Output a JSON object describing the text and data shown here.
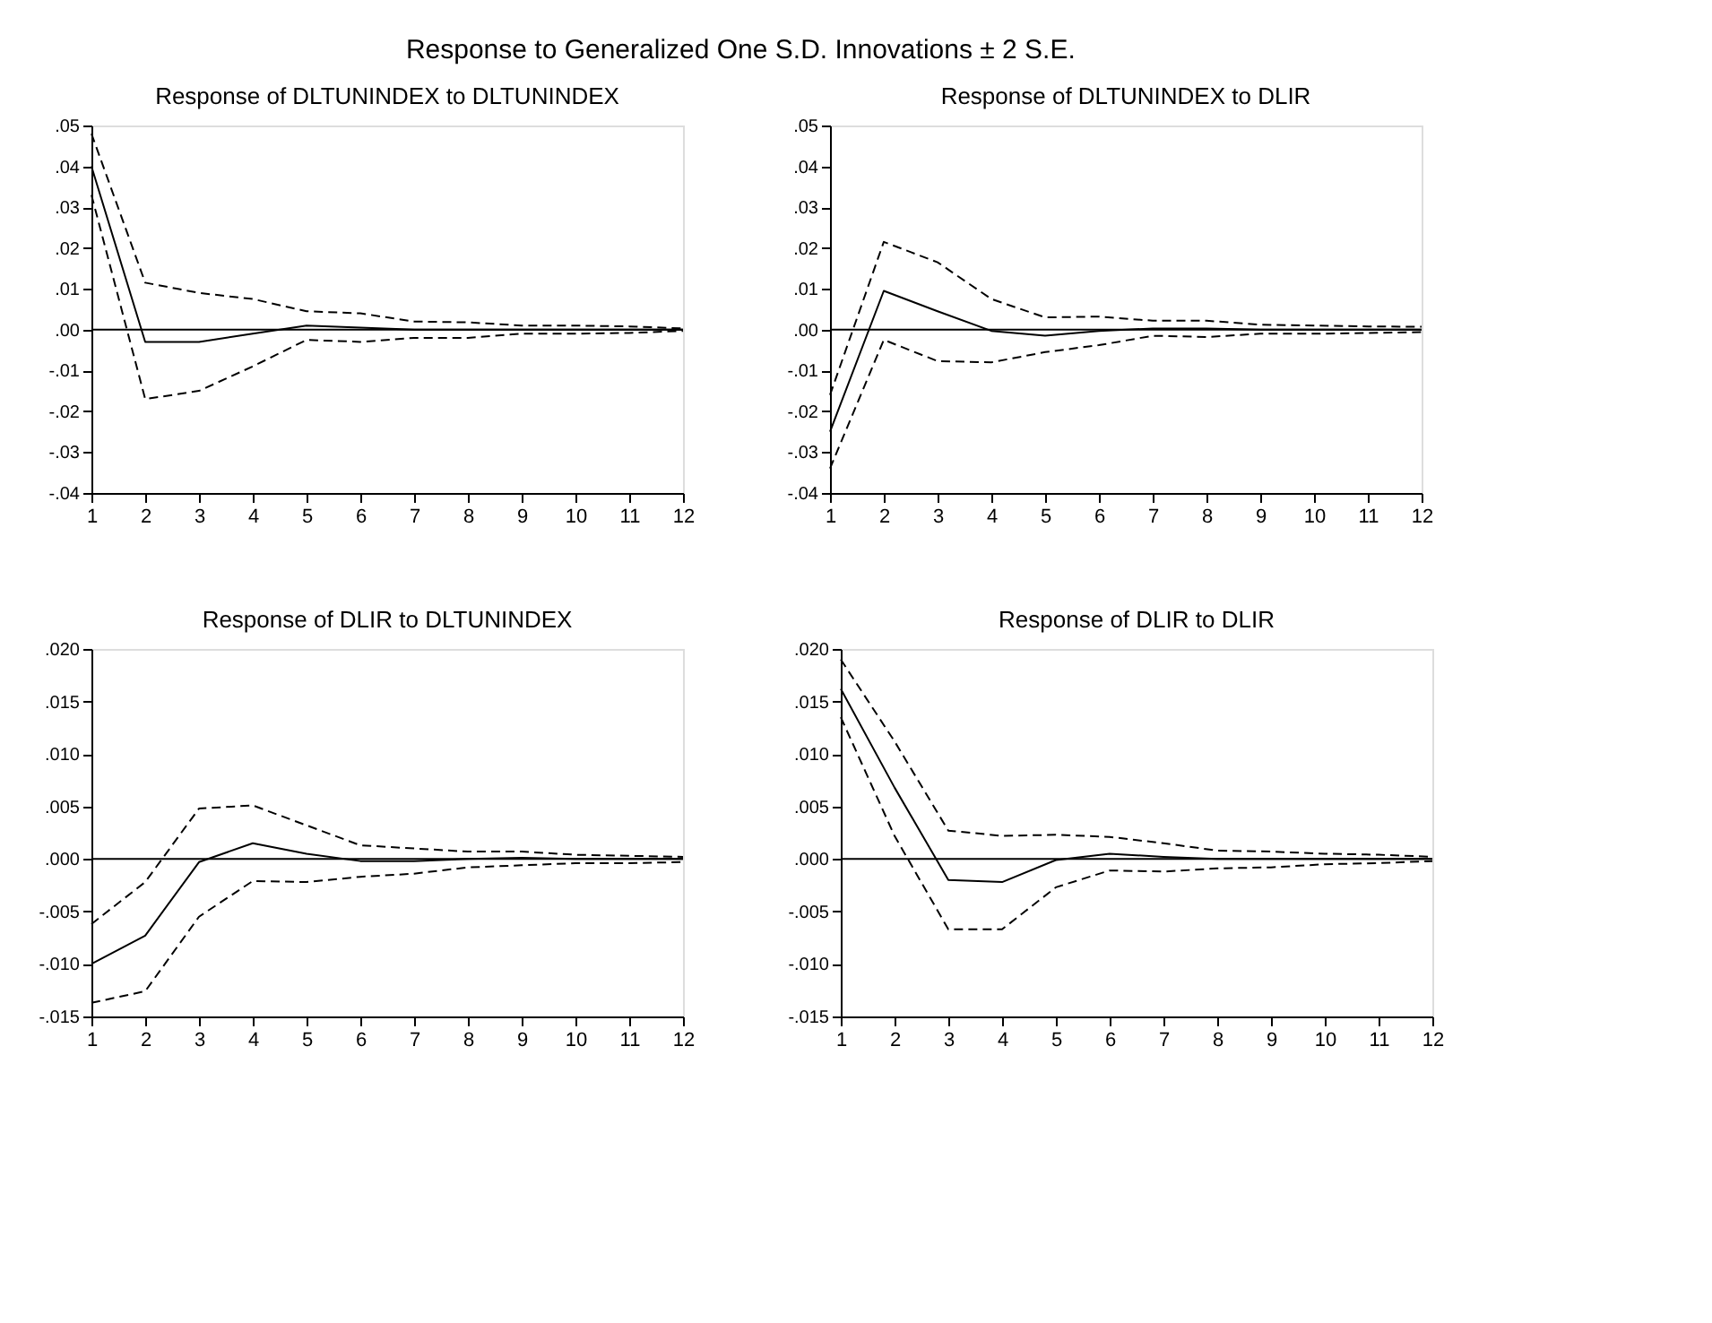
{
  "chart_data": [
    {
      "type": "line",
      "title": "Response of DLTUNINDEX to DLTUNINDEX",
      "annotations": [
        "Response to Generalized One S.D. Innovations ± 2 S.E."
      ],
      "x": [
        1,
        2,
        3,
        4,
        5,
        6,
        7,
        8,
        9,
        10,
        11,
        12
      ],
      "xlim": [
        1,
        12
      ],
      "xticks": [
        1,
        2,
        3,
        4,
        5,
        6,
        7,
        8,
        9,
        10,
        11,
        12
      ],
      "ylim": [
        -0.04,
        0.05
      ],
      "yticks": [
        {
          "value": -0.04,
          "label": "-.04"
        },
        {
          "value": -0.03,
          "label": "-.03"
        },
        {
          "value": -0.02,
          "label": "-.02"
        },
        {
          "value": -0.01,
          "label": "-.01"
        },
        {
          "value": 0,
          "label": ".00"
        },
        {
          "value": 0.01,
          "label": ".01"
        },
        {
          "value": 0.02,
          "label": ".02"
        },
        {
          "value": 0.03,
          "label": ".03"
        },
        {
          "value": 0.04,
          "label": ".04"
        },
        {
          "value": 0.05,
          "label": ".05"
        }
      ],
      "grid": false,
      "ref_lines": [
        {
          "axis": "y",
          "value": 0,
          "color": "#000000"
        }
      ],
      "series": [
        {
          "color": "#000000",
          "line_style": "solid",
          "values": [
            0.04,
            -0.003,
            -0.003,
            -0.001,
            0.001,
            0.0005,
            0,
            0,
            0,
            0,
            0,
            0
          ]
        },
        {
          "color": "#000000",
          "line_style": "dashed",
          "values": [
            0.048,
            0.0115,
            0.009,
            0.0075,
            0.0045,
            0.004,
            0.002,
            0.0018,
            0.001,
            0.001,
            0.0008,
            0.0003
          ]
        },
        {
          "color": "#000000",
          "line_style": "dashed",
          "values": [
            0.033,
            -0.017,
            -0.015,
            -0.009,
            -0.0025,
            -0.003,
            -0.002,
            -0.002,
            -0.001,
            -0.001,
            -0.0008,
            -0.0003
          ]
        }
      ]
    },
    {
      "type": "line",
      "title": "Response of DLTUNINDEX to DLIR",
      "x": [
        1,
        2,
        3,
        4,
        5,
        6,
        7,
        8,
        9,
        10,
        11,
        12
      ],
      "xlim": [
        1,
        12
      ],
      "xticks": [
        1,
        2,
        3,
        4,
        5,
        6,
        7,
        8,
        9,
        10,
        11,
        12
      ],
      "ylim": [
        -0.04,
        0.05
      ],
      "yticks": [
        {
          "value": -0.04,
          "label": "-.04"
        },
        {
          "value": -0.03,
          "label": "-.03"
        },
        {
          "value": -0.02,
          "label": "-.02"
        },
        {
          "value": -0.01,
          "label": "-.01"
        },
        {
          "value": 0,
          "label": ".00"
        },
        {
          "value": 0.01,
          "label": ".01"
        },
        {
          "value": 0.02,
          "label": ".02"
        },
        {
          "value": 0.03,
          "label": ".03"
        },
        {
          "value": 0.04,
          "label": ".04"
        },
        {
          "value": 0.05,
          "label": ".05"
        }
      ],
      "grid": false,
      "ref_lines": [
        {
          "axis": "y",
          "value": 0,
          "color": "#000000"
        }
      ],
      "series": [
        {
          "color": "#000000",
          "line_style": "solid",
          "values": [
            -0.025,
            0.0095,
            0.0045,
            -0.0003,
            -0.0015,
            -0.0003,
            0.0003,
            0.0003,
            0,
            0,
            0,
            0
          ]
        },
        {
          "color": "#000000",
          "line_style": "dashed",
          "values": [
            -0.016,
            0.0215,
            0.0165,
            0.0075,
            0.003,
            0.0032,
            0.0022,
            0.0022,
            0.0012,
            0.001,
            0.0008,
            0.0007
          ]
        },
        {
          "color": "#000000",
          "line_style": "dashed",
          "values": [
            -0.034,
            -0.0025,
            -0.0077,
            -0.008,
            -0.0055,
            -0.0038,
            -0.0015,
            -0.0018,
            -0.001,
            -0.001,
            -0.0008,
            -0.0006
          ]
        }
      ]
    },
    {
      "type": "line",
      "title": "Response of DLIR to DLTUNINDEX",
      "x": [
        1,
        2,
        3,
        4,
        5,
        6,
        7,
        8,
        9,
        10,
        11,
        12
      ],
      "xlim": [
        1,
        12
      ],
      "xticks": [
        1,
        2,
        3,
        4,
        5,
        6,
        7,
        8,
        9,
        10,
        11,
        12
      ],
      "ylim": [
        -0.015,
        0.02
      ],
      "yticks": [
        {
          "value": -0.015,
          "label": "-.015"
        },
        {
          "value": -0.01,
          "label": "-.010"
        },
        {
          "value": -0.005,
          "label": "-.005"
        },
        {
          "value": 0,
          "label": ".000"
        },
        {
          "value": 0.005,
          "label": ".005"
        },
        {
          "value": 0.01,
          "label": ".010"
        },
        {
          "value": 0.015,
          "label": ".015"
        },
        {
          "value": 0.02,
          "label": ".020"
        }
      ],
      "grid": false,
      "ref_lines": [
        {
          "axis": "y",
          "value": 0,
          "color": "#000000"
        }
      ],
      "series": [
        {
          "color": "#000000",
          "line_style": "solid",
          "values": [
            -0.01,
            -0.0073,
            -0.0003,
            0.0015,
            0.0005,
            -0.0002,
            -0.0002,
            0,
            0.0001,
            0,
            0,
            0
          ]
        },
        {
          "color": "#000000",
          "line_style": "dashed",
          "values": [
            -0.0062,
            -0.0022,
            0.0048,
            0.0051,
            0.0032,
            0.0013,
            0.001,
            0.0007,
            0.0007,
            0.0004,
            0.0003,
            0.0002
          ]
        },
        {
          "color": "#000000",
          "line_style": "dashed",
          "values": [
            -0.0137,
            -0.0126,
            -0.0055,
            -0.0021,
            -0.0022,
            -0.0017,
            -0.0014,
            -0.0008,
            -0.0006,
            -0.0004,
            -0.0004,
            -0.0003
          ]
        }
      ]
    },
    {
      "type": "line",
      "title": "Response of DLIR to DLIR",
      "x": [
        1,
        2,
        3,
        4,
        5,
        6,
        7,
        8,
        9,
        10,
        11,
        12
      ],
      "xlim": [
        1,
        12
      ],
      "xticks": [
        1,
        2,
        3,
        4,
        5,
        6,
        7,
        8,
        9,
        10,
        11,
        12
      ],
      "ylim": [
        -0.015,
        0.02
      ],
      "yticks": [
        {
          "value": -0.015,
          "label": "-.015"
        },
        {
          "value": -0.01,
          "label": "-.010"
        },
        {
          "value": -0.005,
          "label": "-.005"
        },
        {
          "value": 0,
          "label": ".000"
        },
        {
          "value": 0.005,
          "label": ".005"
        },
        {
          "value": 0.01,
          "label": ".010"
        },
        {
          "value": 0.015,
          "label": ".015"
        },
        {
          "value": 0.02,
          "label": ".020"
        }
      ],
      "grid": false,
      "ref_lines": [
        {
          "axis": "y",
          "value": 0,
          "color": "#000000"
        }
      ],
      "series": [
        {
          "color": "#000000",
          "line_style": "solid",
          "values": [
            0.0162,
            0.0068,
            -0.002,
            -0.0022,
            -0.0001,
            0.0005,
            0.0002,
            0,
            0,
            0,
            0,
            0
          ]
        },
        {
          "color": "#000000",
          "line_style": "dashed",
          "values": [
            0.019,
            0.0112,
            0.0027,
            0.0022,
            0.0023,
            0.0021,
            0.0015,
            0.0008,
            0.0007,
            0.0005,
            0.0004,
            0.0002
          ]
        },
        {
          "color": "#000000",
          "line_style": "dashed",
          "values": [
            0.0135,
            0.0022,
            -0.0067,
            -0.0067,
            -0.0027,
            -0.0011,
            -0.0012,
            -0.0009,
            -0.0008,
            -0.0005,
            -0.0004,
            -0.0002
          ]
        }
      ]
    }
  ]
}
